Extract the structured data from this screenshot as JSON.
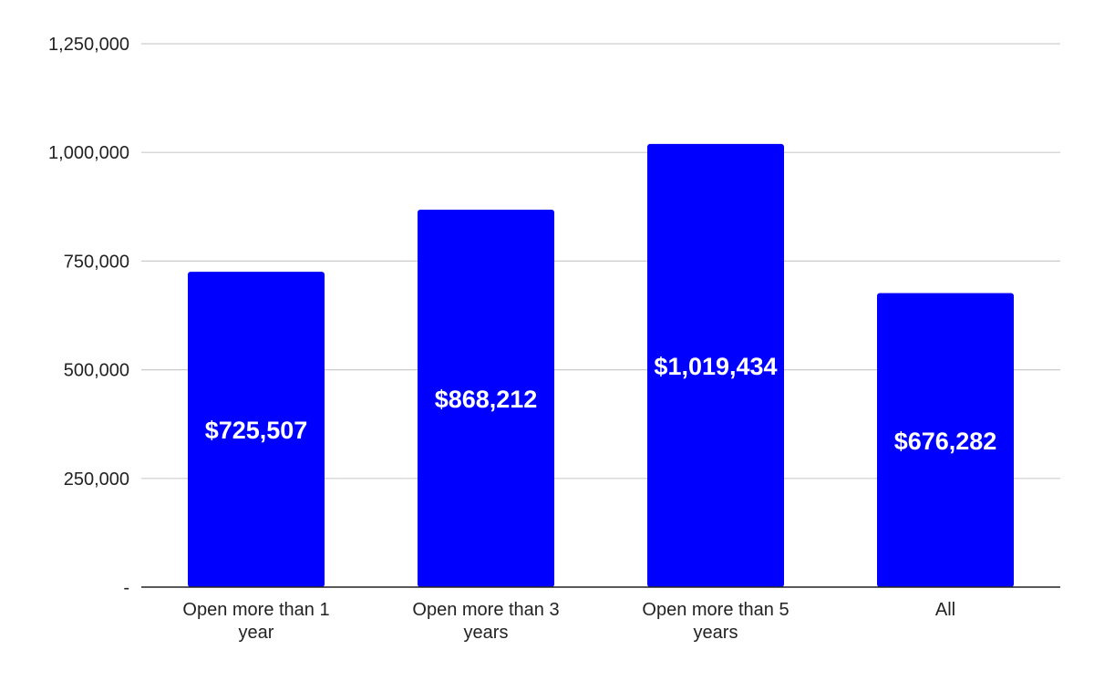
{
  "chart_data": {
    "type": "bar",
    "title": "",
    "xlabel": "",
    "ylabel": "",
    "categories": [
      [
        "Open more than 1",
        "year"
      ],
      [
        "Open more than 3",
        "years"
      ],
      [
        "Open more than 5",
        "years"
      ],
      [
        "All"
      ]
    ],
    "values": [
      725507,
      868212,
      1019434,
      676282
    ],
    "data_labels": [
      "$725,507",
      "$868,212",
      "$1,019,434",
      "$676,282"
    ],
    "ylim": [
      0,
      1250000
    ],
    "yticks": [
      {
        "value": 0,
        "label": "-"
      },
      {
        "value": 250000,
        "label": "250,000"
      },
      {
        "value": 500000,
        "label": "500,000"
      },
      {
        "value": 750000,
        "label": "750,000"
      },
      {
        "value": 1000000,
        "label": "1,000,000"
      },
      {
        "value": 1250000,
        "label": "1,250,000"
      }
    ],
    "grid": true,
    "legend": "none",
    "bar_color": "#0000ff",
    "gridline_color": "#cccccc",
    "axis_color": "#222222"
  }
}
